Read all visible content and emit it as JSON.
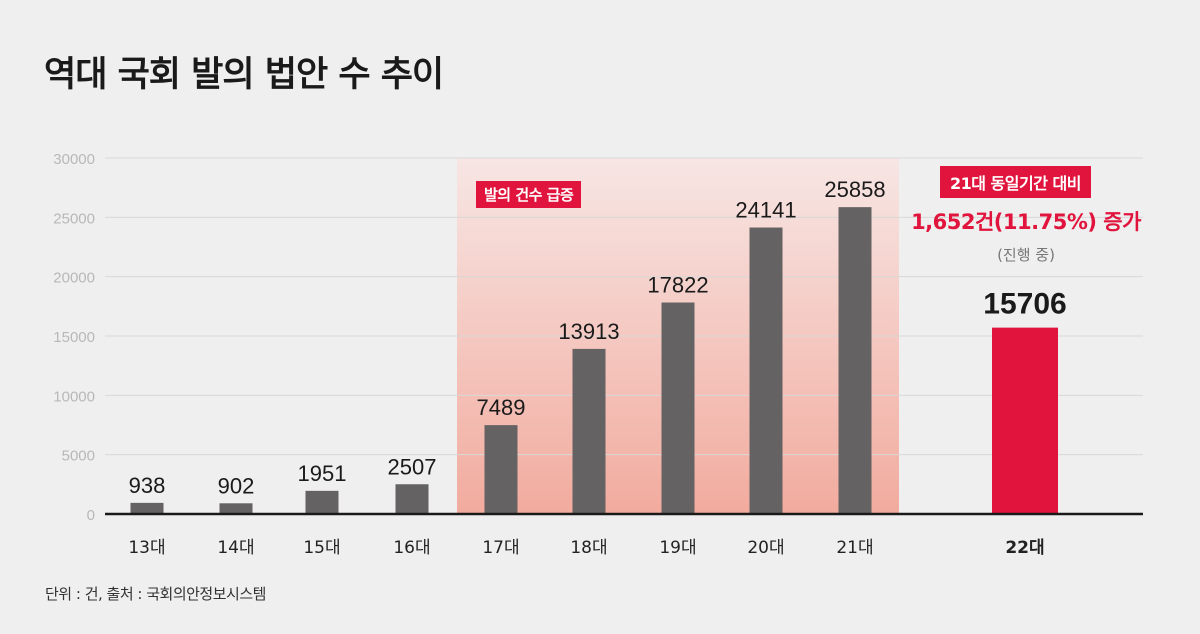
{
  "chart_data": {
    "type": "bar",
    "title": "역대 국회 발의 법안 수 추이",
    "categories": [
      "13대",
      "14대",
      "15대",
      "16대",
      "17대",
      "18대",
      "19대",
      "20대",
      "21대",
      "22대"
    ],
    "values": [
      938,
      902,
      1951,
      2507,
      7489,
      13913,
      17822,
      24141,
      25858,
      15706
    ],
    "ylim": [
      0,
      30000
    ],
    "yticks": [
      0,
      5000,
      10000,
      15000,
      20000,
      25000,
      30000
    ],
    "grid": true,
    "highlight_range": [
      "17대",
      "21대"
    ],
    "annotations": {
      "surge_label": "발의 건수 급증",
      "compare_label": "21대 동일기간 대비",
      "increase_text": "1,652건(11.75%) 증가",
      "in_progress": "(진행 중)"
    },
    "footnote": "단위 : 건, 출처 : 국회의안정보시스템",
    "colors": {
      "bar": "#646262",
      "highlight_bar": "#e0143c",
      "accent": "#e0143c"
    }
  }
}
